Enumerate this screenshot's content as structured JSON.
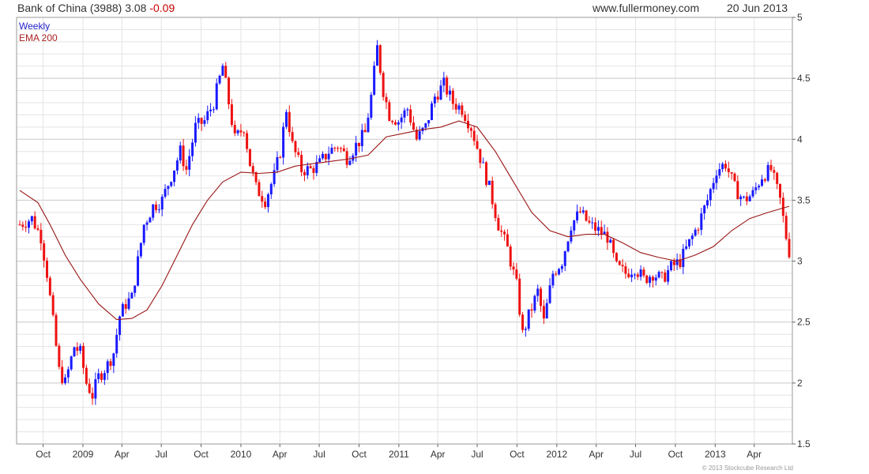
{
  "header": {
    "title": "Bank of China (3988) 3.08",
    "change": "-0.09",
    "site": "www.fullermoney.com",
    "date": "20 Jun 2013"
  },
  "footer": {
    "copyright": "© 2013 Stockcube Research Ltd"
  },
  "chart_data": {
    "type": "candlestick",
    "frequency": "Weekly",
    "legend": [
      {
        "label": "Weekly",
        "color": "#2222cc"
      },
      {
        "label": "EMA 200",
        "color": "#aa2222"
      }
    ],
    "colors": {
      "up": "#1a1aff",
      "down": "#ee1111",
      "ema": "#991515",
      "grid": "#e3e3e3",
      "grid_major": "#c8c8c8"
    },
    "y_axis": {
      "min": 1.5,
      "max": 5,
      "position": "right",
      "ticks": [
        1.5,
        2,
        2.5,
        3,
        3.5,
        4,
        4.5,
        5
      ]
    },
    "x_axis": {
      "start": "2008-08-08",
      "end": "2013-06-21",
      "ticks": [
        {
          "label": "Oct",
          "date": "2008-10-01"
        },
        {
          "label": "2009",
          "date": "2009-01-01"
        },
        {
          "label": "Apr",
          "date": "2009-04-01"
        },
        {
          "label": "Jul",
          "date": "2009-07-01"
        },
        {
          "label": "Oct",
          "date": "2009-10-01"
        },
        {
          "label": "2010",
          "date": "2010-01-01"
        },
        {
          "label": "Apr",
          "date": "2010-04-01"
        },
        {
          "label": "Jul",
          "date": "2010-07-01"
        },
        {
          "label": "Oct",
          "date": "2010-10-01"
        },
        {
          "label": "2011",
          "date": "2011-01-01"
        },
        {
          "label": "Apr",
          "date": "2011-04-01"
        },
        {
          "label": "Jul",
          "date": "2011-07-01"
        },
        {
          "label": "Oct",
          "date": "2011-10-01"
        },
        {
          "label": "2012",
          "date": "2012-01-01"
        },
        {
          "label": "Apr",
          "date": "2012-04-01"
        },
        {
          "label": "Jul",
          "date": "2012-07-01"
        },
        {
          "label": "Oct",
          "date": "2012-10-01"
        },
        {
          "label": "2013",
          "date": "2013-01-01"
        },
        {
          "label": "Apr",
          "date": "2013-04-01"
        }
      ]
    },
    "close_anchors": [
      [
        "2008-08-08",
        3.3
      ],
      [
        "2008-09-05",
        3.35
      ],
      [
        "2008-09-26",
        3.2
      ],
      [
        "2008-10-10",
        2.9
      ],
      [
        "2008-10-24",
        2.5
      ],
      [
        "2008-11-07",
        2.1
      ],
      [
        "2008-11-21",
        2.0
      ],
      [
        "2008-12-12",
        2.3
      ],
      [
        "2008-12-26",
        2.25
      ],
      [
        "2009-01-09",
        2.0
      ],
      [
        "2009-01-23",
        1.9
      ],
      [
        "2009-02-06",
        2.05
      ],
      [
        "2009-02-27",
        2.15
      ],
      [
        "2009-03-13",
        2.25
      ],
      [
        "2009-03-27",
        2.55
      ],
      [
        "2009-04-10",
        2.65
      ],
      [
        "2009-04-24",
        2.7
      ],
      [
        "2009-05-08",
        3.0
      ],
      [
        "2009-05-22",
        3.3
      ],
      [
        "2009-06-12",
        3.45
      ],
      [
        "2009-07-03",
        3.5
      ],
      [
        "2009-07-24",
        3.7
      ],
      [
        "2009-08-14",
        3.9
      ],
      [
        "2009-08-28",
        3.75
      ],
      [
        "2009-09-18",
        4.1
      ],
      [
        "2009-10-09",
        4.15
      ],
      [
        "2009-10-30",
        4.3
      ],
      [
        "2009-11-20",
        4.6
      ],
      [
        "2009-12-04",
        4.3
      ],
      [
        "2009-12-18",
        4.0
      ],
      [
        "2010-01-08",
        4.1
      ],
      [
        "2010-01-22",
        3.8
      ],
      [
        "2010-02-05",
        3.6
      ],
      [
        "2010-02-26",
        3.5
      ],
      [
        "2010-03-19",
        3.7
      ],
      [
        "2010-04-02",
        3.9
      ],
      [
        "2010-04-16",
        4.25
      ],
      [
        "2010-04-30",
        3.95
      ],
      [
        "2010-05-21",
        3.75
      ],
      [
        "2010-06-11",
        3.75
      ],
      [
        "2010-07-02",
        3.8
      ],
      [
        "2010-07-23",
        3.9
      ],
      [
        "2010-08-13",
        3.95
      ],
      [
        "2010-09-03",
        3.85
      ],
      [
        "2010-09-24",
        3.95
      ],
      [
        "2010-10-15",
        4.05
      ],
      [
        "2010-10-29",
        4.35
      ],
      [
        "2010-11-12",
        4.75
      ],
      [
        "2010-11-26",
        4.4
      ],
      [
        "2010-12-10",
        4.2
      ],
      [
        "2010-12-31",
        4.15
      ],
      [
        "2011-01-21",
        4.25
      ],
      [
        "2011-02-11",
        4.0
      ],
      [
        "2011-03-04",
        4.1
      ],
      [
        "2011-03-25",
        4.35
      ],
      [
        "2011-04-15",
        4.45
      ],
      [
        "2011-05-06",
        4.3
      ],
      [
        "2011-05-27",
        4.25
      ],
      [
        "2011-06-17",
        4.1
      ],
      [
        "2011-07-08",
        3.85
      ],
      [
        "2011-07-29",
        3.6
      ],
      [
        "2011-08-19",
        3.3
      ],
      [
        "2011-09-09",
        3.1
      ],
      [
        "2011-09-30",
        2.8
      ],
      [
        "2011-10-14",
        2.4
      ],
      [
        "2011-10-28",
        2.55
      ],
      [
        "2011-11-18",
        2.75
      ],
      [
        "2011-12-02",
        2.5
      ],
      [
        "2011-12-23",
        2.9
      ],
      [
        "2012-01-13",
        3.0
      ],
      [
        "2012-02-03",
        3.3
      ],
      [
        "2012-02-24",
        3.4
      ],
      [
        "2012-03-16",
        3.3
      ],
      [
        "2012-04-06",
        3.25
      ],
      [
        "2012-04-27",
        3.2
      ],
      [
        "2012-05-18",
        2.95
      ],
      [
        "2012-06-08",
        2.9
      ],
      [
        "2012-06-29",
        2.95
      ],
      [
        "2012-07-20",
        2.85
      ],
      [
        "2012-08-10",
        2.9
      ],
      [
        "2012-08-31",
        2.85
      ],
      [
        "2012-09-21",
        2.95
      ],
      [
        "2012-10-12",
        3.0
      ],
      [
        "2012-11-02",
        3.15
      ],
      [
        "2012-11-23",
        3.3
      ],
      [
        "2012-12-14",
        3.5
      ],
      [
        "2013-01-04",
        3.75
      ],
      [
        "2013-01-25",
        3.8
      ],
      [
        "2013-02-15",
        3.6
      ],
      [
        "2013-03-08",
        3.5
      ],
      [
        "2013-03-29",
        3.55
      ],
      [
        "2013-04-19",
        3.7
      ],
      [
        "2013-05-10",
        3.75
      ],
      [
        "2013-05-31",
        3.5
      ],
      [
        "2013-06-14",
        3.2
      ],
      [
        "2013-06-21",
        3.08
      ]
    ],
    "ema_200": [
      [
        "2008-08-08",
        3.58
      ],
      [
        "2008-09-19",
        3.48
      ],
      [
        "2008-10-17",
        3.3
      ],
      [
        "2008-11-21",
        3.05
      ],
      [
        "2008-12-26",
        2.85
      ],
      [
        "2009-02-06",
        2.65
      ],
      [
        "2009-03-20",
        2.52
      ],
      [
        "2009-04-24",
        2.53
      ],
      [
        "2009-05-29",
        2.6
      ],
      [
        "2009-07-03",
        2.8
      ],
      [
        "2009-08-07",
        3.05
      ],
      [
        "2009-09-11",
        3.3
      ],
      [
        "2009-10-16",
        3.5
      ],
      [
        "2009-11-20",
        3.65
      ],
      [
        "2010-01-01",
        3.73
      ],
      [
        "2010-02-12",
        3.72
      ],
      [
        "2010-03-26",
        3.73
      ],
      [
        "2010-05-07",
        3.78
      ],
      [
        "2010-06-18",
        3.8
      ],
      [
        "2010-07-30",
        3.82
      ],
      [
        "2010-09-10",
        3.84
      ],
      [
        "2010-10-22",
        3.87
      ],
      [
        "2010-12-03",
        4.02
      ],
      [
        "2011-01-14",
        4.05
      ],
      [
        "2011-02-25",
        4.08
      ],
      [
        "2011-04-08",
        4.1
      ],
      [
        "2011-05-20",
        4.15
      ],
      [
        "2011-07-01",
        4.1
      ],
      [
        "2011-08-12",
        3.9
      ],
      [
        "2011-09-23",
        3.65
      ],
      [
        "2011-11-04",
        3.4
      ],
      [
        "2011-12-16",
        3.25
      ],
      [
        "2012-01-27",
        3.2
      ],
      [
        "2012-03-09",
        3.22
      ],
      [
        "2012-04-20",
        3.22
      ],
      [
        "2012-06-01",
        3.15
      ],
      [
        "2012-07-13",
        3.07
      ],
      [
        "2012-08-24",
        3.03
      ],
      [
        "2012-10-05",
        3.0
      ],
      [
        "2012-11-16",
        3.05
      ],
      [
        "2012-12-28",
        3.12
      ],
      [
        "2013-02-08",
        3.25
      ],
      [
        "2013-03-22",
        3.35
      ],
      [
        "2013-05-03",
        3.4
      ],
      [
        "2013-06-21",
        3.45
      ]
    ]
  }
}
